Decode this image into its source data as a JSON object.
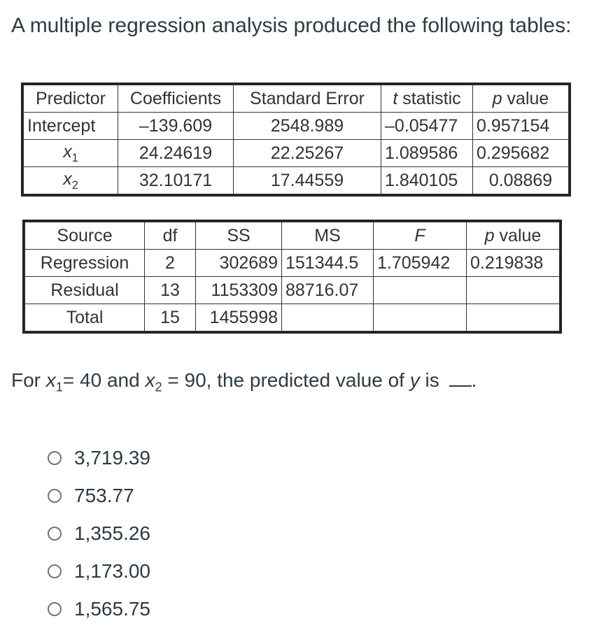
{
  "question": {
    "title": "A multiple regression analysis produced the following tables:",
    "prompt_parts": {
      "p1": "For ",
      "x": "x",
      "sub1": "1",
      "p2": "= 40 and ",
      "x2": "x",
      "sub2": "2",
      "p3": " = 90, the predicted value of ",
      "y": "y",
      "p4": " is ",
      "p5": "."
    }
  },
  "coef_table": {
    "headers": [
      "Predictor",
      "Coefficients",
      "Standard Error",
      "t statistic",
      "p value"
    ],
    "rows": [
      [
        "Intercept",
        "–139.609",
        "2548.989",
        "–0.05477",
        "0.957154"
      ],
      [
        "x1",
        "24.24619",
        "22.25267",
        "1.089586",
        "0.295682"
      ],
      [
        "x2",
        "32.10171",
        "17.44559",
        "1.840105",
        "0.08869"
      ]
    ],
    "row_labels": {
      "x": "x",
      "sub1": "1",
      "sub2": "2"
    }
  },
  "anova_table": {
    "headers": [
      "Source",
      "df",
      "SS",
      "MS",
      "F",
      "p value"
    ],
    "rows": [
      [
        "Regression",
        "2",
        "302689",
        "151344.5",
        "1.705942",
        "0.219838"
      ],
      [
        "Residual",
        "13",
        "1153309",
        "88716.07",
        "",
        ""
      ],
      [
        "Total",
        "15",
        "1455998",
        "",
        "",
        ""
      ]
    ]
  },
  "options": [
    "3,719.39",
    "753.77",
    "1,355.26",
    "1,173.00",
    "1,565.75"
  ]
}
